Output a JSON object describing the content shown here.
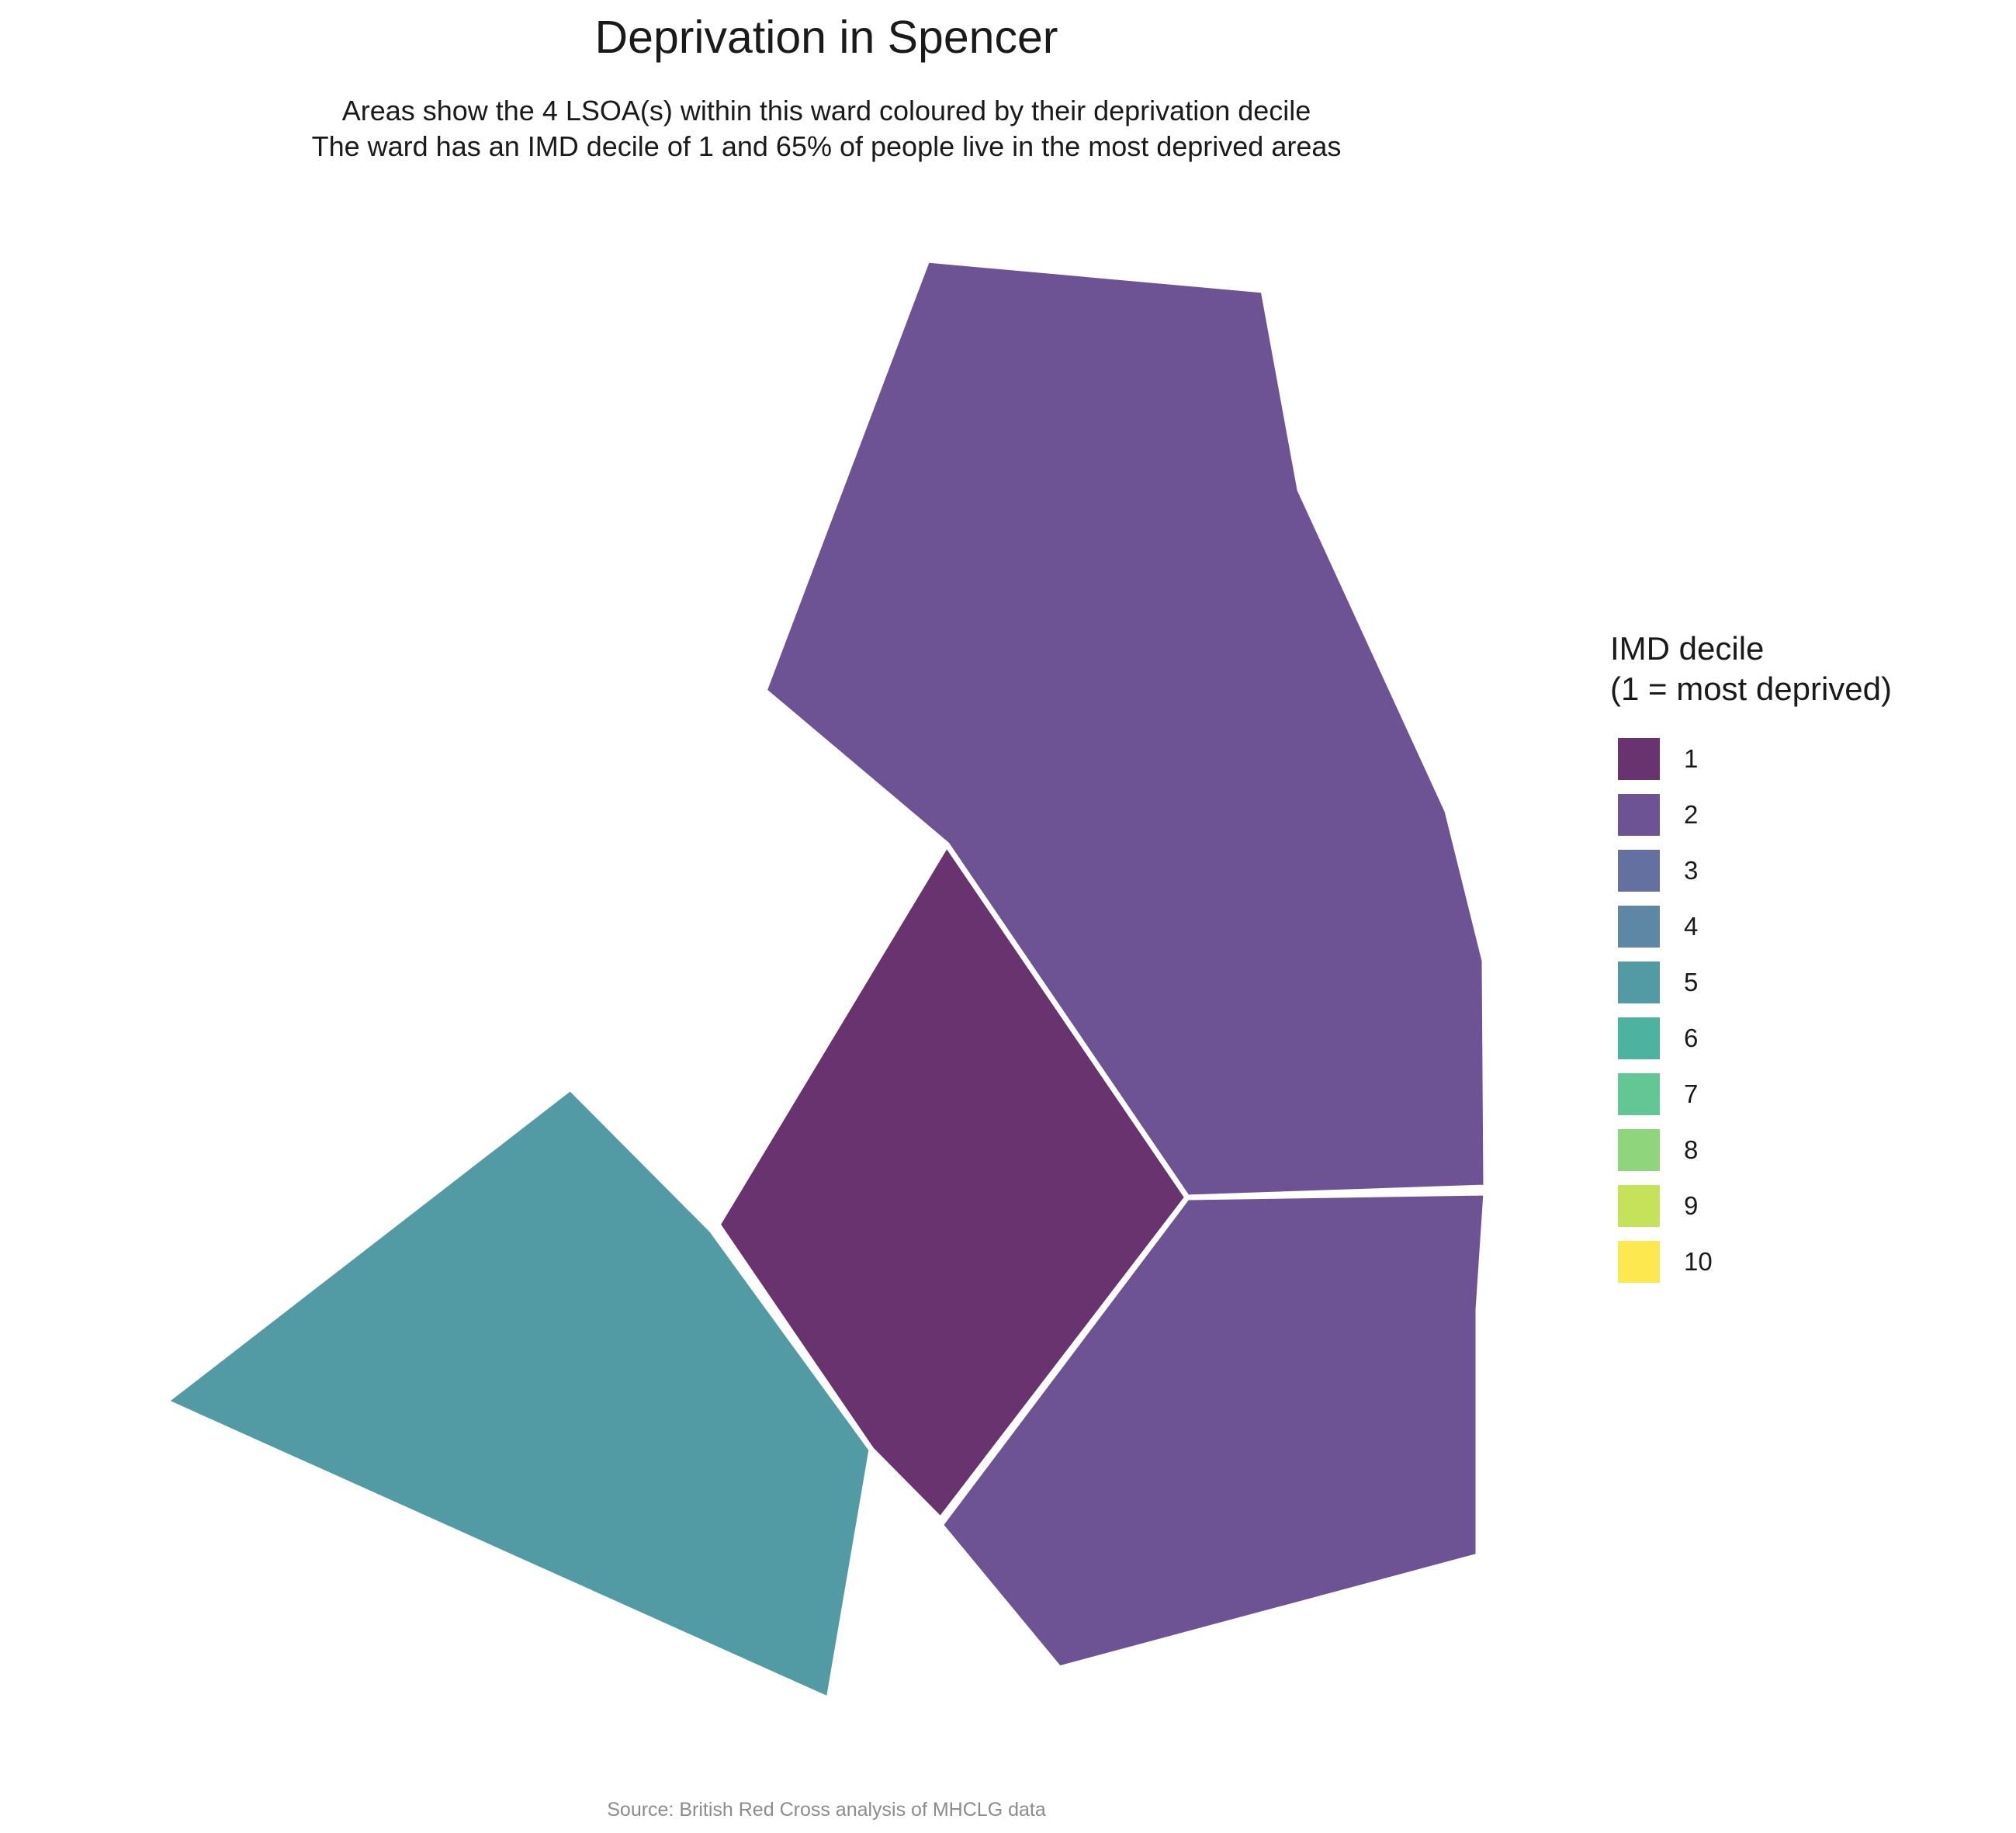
{
  "title": "Deprivation in Spencer",
  "subtitle_line1": "Areas show the 4 LSOA(s) within this ward coloured by their deprivation decile",
  "subtitle_line2": "The ward has an IMD decile of 1 and 65% of people live in the most deprived areas",
  "caption": "Source: British Red Cross analysis of MHCLG data",
  "legend": {
    "title_line1": "IMD decile",
    "title_line2": "(1 = most deprived)",
    "items": [
      {
        "label": "1",
        "color": "#68336F"
      },
      {
        "label": "2",
        "color": "#6D5393"
      },
      {
        "label": "3",
        "color": "#6470A0"
      },
      {
        "label": "4",
        "color": "#5D87A5"
      },
      {
        "label": "5",
        "color": "#529BA5"
      },
      {
        "label": "6",
        "color": "#4DB2A0"
      },
      {
        "label": "7",
        "color": "#62C695"
      },
      {
        "label": "8",
        "color": "#8FD57C"
      },
      {
        "label": "9",
        "color": "#C6E15A"
      },
      {
        "label": "10",
        "color": "#FDE94F"
      }
    ]
  },
  "areas": [
    {
      "name": "lsoa-north",
      "decile": 2
    },
    {
      "name": "lsoa-centre",
      "decile": 1
    },
    {
      "name": "lsoa-southeast",
      "decile": 2
    },
    {
      "name": "lsoa-southwest",
      "decile": 5
    }
  ]
}
